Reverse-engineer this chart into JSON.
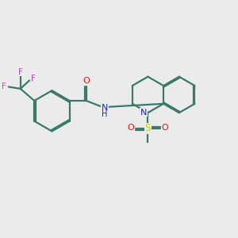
{
  "bg_color": "#ebebeb",
  "atom_colors": {
    "C": "#3a7a6a",
    "N": "#2020cc",
    "O": "#ee1111",
    "S": "#cccc00",
    "F": "#cc44cc",
    "H": "#2020cc"
  },
  "bond_color": "#3a7a6a",
  "line_width": 1.6,
  "fig_size": [
    3.0,
    3.0
  ],
  "dpi": 100
}
